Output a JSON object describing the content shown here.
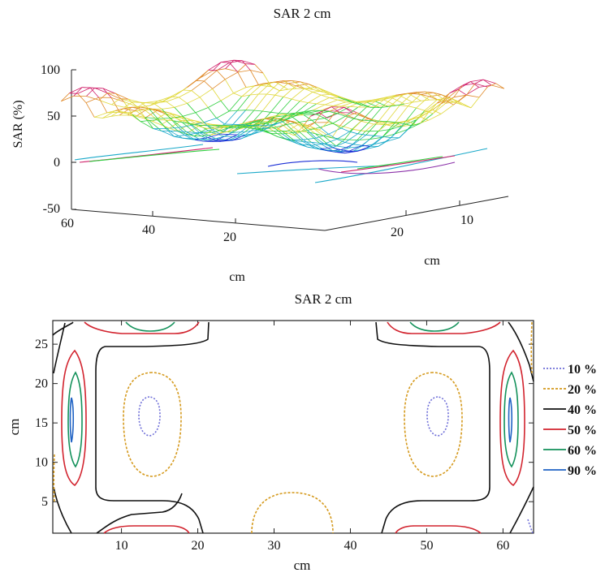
{
  "chart_data": [
    {
      "type": "surface",
      "title": "SAR 2 cm",
      "zlabel": "SAR (%)",
      "xlabel": "cm",
      "ylabel": "cm",
      "x_ticks": [
        "60",
        "40",
        "20"
      ],
      "y_ticks": [
        "20",
        "10"
      ],
      "z_ticks": [
        "100",
        "50",
        "0",
        "-50"
      ],
      "zlim": [
        -50,
        100
      ],
      "xlim": [
        0,
        64
      ],
      "ylim": [
        0,
        28
      ],
      "colormap": [
        "#1b2fd6",
        "#1aa9c9",
        "#2fcf3f",
        "#e0d83a",
        "#e08a2a",
        "#d0206a",
        "#8a2fa8"
      ]
    },
    {
      "type": "contour",
      "title": "SAR 2 cm",
      "xlabel": "cm",
      "ylabel": "cm",
      "xlim": [
        1,
        64
      ],
      "ylim": [
        1,
        28
      ],
      "x_ticks": [
        "10",
        "20",
        "30",
        "40",
        "50",
        "60"
      ],
      "y_ticks": [
        "5",
        "10",
        "15",
        "20",
        "25"
      ],
      "legend_position": "right",
      "legend": [
        {
          "label": "10 %",
          "color": "#6f6fd8",
          "dash": "2,2"
        },
        {
          "label": "20 %",
          "color": "#d59a1e",
          "dash": "3,2"
        },
        {
          "label": "40 %",
          "color": "#111111",
          "dash": ""
        },
        {
          "label": "50 %",
          "color": "#d2232e",
          "dash": ""
        },
        {
          "label": "60 %",
          "color": "#13915a",
          "dash": ""
        },
        {
          "label": "90 %",
          "color": "#1f62c4",
          "dash": ""
        }
      ]
    }
  ]
}
